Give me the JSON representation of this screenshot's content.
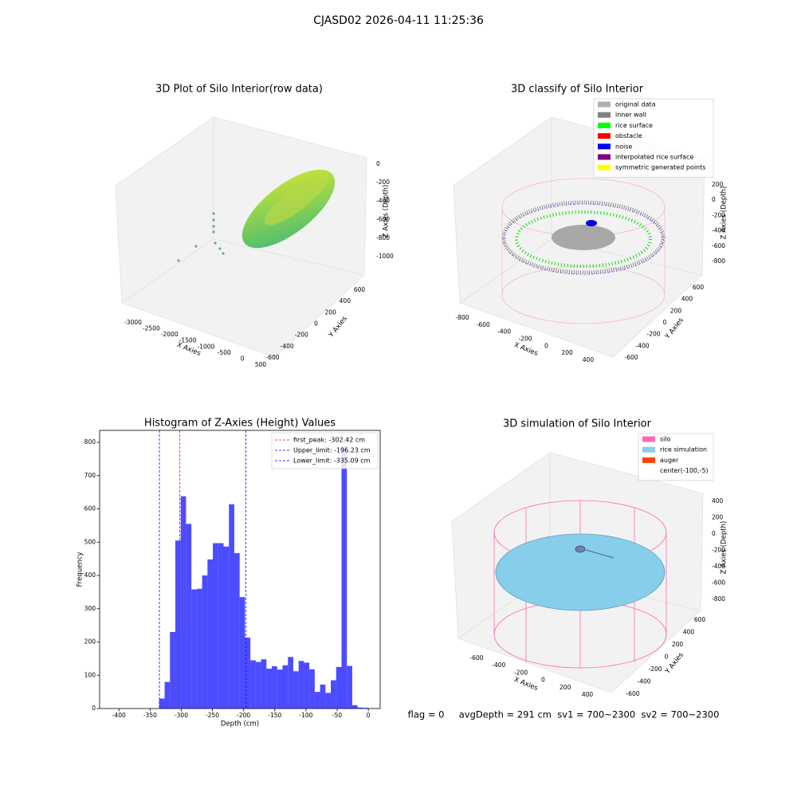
{
  "suptitle": "CJASD02 2026-04-11 11:25:36",
  "footer": "flag = 0     avgDepth = 291 cm  sv1 = 700~2300  sv2 = 700~2300",
  "chart_data": [
    {
      "type": "scatter3d",
      "title": "3D Plot of Silo Interior(row data)",
      "xlabel": "X Axies",
      "ylabel": "Y Axies",
      "zlabel": "Z Axies (Depth)",
      "xticks": [
        -3000,
        -2500,
        -2000,
        -1500,
        -1000,
        -500,
        0,
        500
      ],
      "yticks": [
        -600,
        -400,
        -200,
        0,
        200,
        400,
        600
      ],
      "zticks": [
        0,
        -200,
        -400,
        -600,
        -800,
        -1000
      ]
    },
    {
      "type": "scatter3d",
      "title": "3D classify of Silo Interior",
      "xlabel": "X Axies",
      "ylabel": "Y Axies",
      "zlabel": "Z Axies (Depth)",
      "xticks": [
        -800,
        -600,
        -400,
        -200,
        0,
        200,
        400
      ],
      "yticks": [
        -600,
        -400,
        -200,
        0,
        200,
        400,
        600
      ],
      "zticks": [
        200,
        0,
        -200,
        -400,
        -600,
        -800
      ],
      "legend": [
        {
          "name": "original data",
          "color": "#b0b0b0"
        },
        {
          "name": "inner wall",
          "color": "#808080"
        },
        {
          "name": "rice surface",
          "color": "#00ff00"
        },
        {
          "name": "obstacle",
          "color": "#ff0000"
        },
        {
          "name": "noise",
          "color": "#0000ff"
        },
        {
          "name": "interpolated rice surface",
          "color": "#800080"
        },
        {
          "name": "symmetric generated points",
          "color": "#ffff00"
        }
      ]
    },
    {
      "type": "histogram",
      "title": "Histogram of Z-Axies (Height) Values",
      "xlabel": "Depth (cm)",
      "ylabel": "Frequency",
      "color": "#0000ff",
      "alpha": 0.7,
      "bins": [
        -430,
        -421.4,
        -412.8,
        -404.2,
        -395.6,
        -387,
        -378.4,
        -369.8,
        -361.2,
        -352.6,
        -344,
        -335.4,
        -326.8,
        -318.2,
        -309.6,
        -301,
        -292.4,
        -283.8,
        -275.2,
        -266.6,
        -258,
        -249.4,
        -240.8,
        -232.2,
        -223.6,
        -215,
        -206.4,
        -197.8,
        -189.2,
        -180.6,
        -172,
        -163.4,
        -154.8,
        -146.2,
        -137.6,
        -129,
        -120.4,
        -111.8,
        -103.2,
        -94.6,
        -86,
        -77.4,
        -68.8,
        -60.2,
        -51.6,
        -43,
        -34.4,
        -25.8,
        -17.2,
        -8.6,
        0
      ],
      "values": [
        0,
        0,
        0,
        0,
        0,
        0,
        0,
        0,
        0,
        0,
        0,
        30,
        80,
        230,
        505,
        638,
        555,
        358,
        360,
        400,
        448,
        497,
        497,
        487,
        614,
        467,
        335,
        213,
        145,
        140,
        148,
        120,
        127,
        117,
        130,
        155,
        112,
        143,
        138,
        118,
        50,
        72,
        47,
        85,
        125,
        790,
        128,
        10,
        3,
        2
      ],
      "xlim": [
        -431,
        19
      ],
      "ylim": [
        0,
        836
      ],
      "xticks": [
        -400,
        -350,
        -300,
        -250,
        -200,
        -150,
        -100,
        -50,
        0
      ],
      "yticks": [
        0,
        100,
        200,
        300,
        400,
        500,
        600,
        700,
        800
      ],
      "vlines": [
        {
          "name": "first_peak: -302.42 cm",
          "value": -302.42,
          "color": "#ff0000"
        },
        {
          "name": "Upper_limit: -196.23 cm",
          "value": -196.23,
          "color": "#0000ff"
        },
        {
          "name": "Lower_limit: -335.09 cm",
          "value": -335.09,
          "color": "#0000ff"
        }
      ],
      "legend_position": "upper right"
    },
    {
      "type": "scatter3d",
      "title": "3D simulation of Silo Interior",
      "xlabel": "X Axies",
      "ylabel": "Y Axies",
      "zlabel": "Z Axies (Depth)",
      "xticks": [
        -600,
        -400,
        -200,
        0,
        200,
        400
      ],
      "yticks": [
        -600,
        -400,
        -200,
        0,
        200,
        400,
        600
      ],
      "zticks": [
        400,
        200,
        0,
        -200,
        -400,
        -600,
        -800
      ],
      "legend": [
        {
          "name": "silo",
          "color": "#ff69b4"
        },
        {
          "name": "rice simulation",
          "color": "#87ceeb"
        },
        {
          "name": "auger",
          "color": "#ff4500"
        },
        {
          "name": "center(-100,-5)"
        }
      ]
    }
  ]
}
